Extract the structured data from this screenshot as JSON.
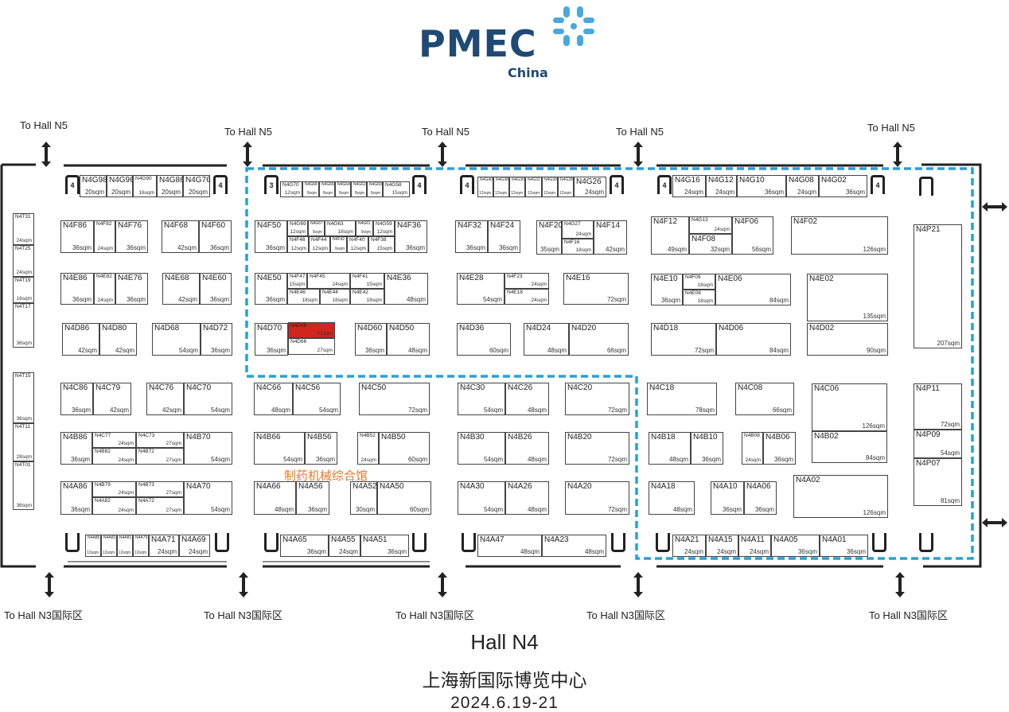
{
  "logo": {
    "brand": "PMEC",
    "sub": "China",
    "accent": "#4aa8e0",
    "brand_color": "#1f4a73"
  },
  "gates_top": [
    "To Hall N5",
    "To Hall N5",
    "To Hall N5",
    "To Hall N5",
    "To Hall N5"
  ],
  "gates_bottom": [
    "To Hall N3国际区",
    "To Hall N3国际区",
    "To Hall N3国际区",
    "To Hall N3国际区",
    "To Hall N3国际区"
  ],
  "zone": {
    "label": "制药机械综合馆",
    "label_color": "#e07a2a",
    "border_color": "#2a9fd6"
  },
  "highlight_color": "#d0261e",
  "footer": {
    "hall": "Hall N4",
    "venue": "上海新国际博览中心",
    "dates": "2024.6.19-21"
  },
  "booths": [
    {
      "id": "N4G98",
      "sqm": "20sqm"
    },
    {
      "id": "N4G96",
      "sqm": "20sqm"
    },
    {
      "id": "N4G90",
      "sqm": "16sqm"
    },
    {
      "id": "N4G86",
      "sqm": "20sqm"
    },
    {
      "id": "N4G76",
      "sqm": "20sqm"
    },
    {
      "id": "N4G70",
      "sqm": "12sqm"
    },
    {
      "id": "N4G68",
      "sqm": "9sqm"
    },
    {
      "id": "N4G66",
      "sqm": "9sqm"
    },
    {
      "id": "N4G64",
      "sqm": "9sqm"
    },
    {
      "id": "N4G62",
      "sqm": "9sqm"
    },
    {
      "id": "N4G60",
      "sqm": "9sqm"
    },
    {
      "id": "N4G58",
      "sqm": "15sqm"
    },
    {
      "id": "N4G40",
      "sqm": "12sqm"
    },
    {
      "id": "N4G38",
      "sqm": "12sqm"
    },
    {
      "id": "N4G36",
      "sqm": "12sqm"
    },
    {
      "id": "N4G32",
      "sqm": "12sqm"
    },
    {
      "id": "N4G30",
      "sqm": "12sqm"
    },
    {
      "id": "N4G28",
      "sqm": "12sqm"
    },
    {
      "id": "N4G26",
      "sqm": "24sqm"
    },
    {
      "id": "N4G16",
      "sqm": "24sqm"
    },
    {
      "id": "N4G12",
      "sqm": "24sqm"
    },
    {
      "id": "N4G10",
      "sqm": "36sqm"
    },
    {
      "id": "N4G08",
      "sqm": "24sqm"
    },
    {
      "id": "N4G02",
      "sqm": "36sqm"
    },
    {
      "id": "N4F86",
      "sqm": "36sqm"
    },
    {
      "id": "N4F82",
      "sqm": "24sqm"
    },
    {
      "id": "N4F76",
      "sqm": "36sqm"
    },
    {
      "id": "N4F68",
      "sqm": "42sqm"
    },
    {
      "id": "N4F60",
      "sqm": "36sqm"
    },
    {
      "id": "N4F50",
      "sqm": "36sqm"
    },
    {
      "id": "N4G69",
      "sqm": "12sqm"
    },
    {
      "id": "N4G67",
      "sqm": "9sqm"
    },
    {
      "id": "N4G63",
      "sqm": "18sqm"
    },
    {
      "id": "N4G61",
      "sqm": "9sqm"
    },
    {
      "id": "N4G59",
      "sqm": "12sqm"
    },
    {
      "id": "N4F46",
      "sqm": "12sqm"
    },
    {
      "id": "N4F44",
      "sqm": "12sqm"
    },
    {
      "id": "N4F42",
      "sqm": "9sqm"
    },
    {
      "id": "N4F40",
      "sqm": "12sqm"
    },
    {
      "id": "N4F38",
      "sqm": "15sqm"
    },
    {
      "id": "N4F36",
      "sqm": "36sqm"
    },
    {
      "id": "N4F32",
      "sqm": "36sqm"
    },
    {
      "id": "N4F24",
      "sqm": "36sqm"
    },
    {
      "id": "N4F20",
      "sqm": "35sqm"
    },
    {
      "id": "N4G27",
      "sqm": "24sqm"
    },
    {
      "id": "N4F16",
      "sqm": "18sqm"
    },
    {
      "id": "N4F14",
      "sqm": "42sqm"
    },
    {
      "id": "N4F12",
      "sqm": "49sqm"
    },
    {
      "id": "N4G13",
      "sqm": "24sqm"
    },
    {
      "id": "N4F08",
      "sqm": "32sqm"
    },
    {
      "id": "N4F06",
      "sqm": "56sqm"
    },
    {
      "id": "N4F02",
      "sqm": "126sqm"
    },
    {
      "id": "N4P21",
      "sqm": "207sqm"
    },
    {
      "id": "N4E86",
      "sqm": "36sqm"
    },
    {
      "id": "N4E82",
      "sqm": "24sqm"
    },
    {
      "id": "N4E76",
      "sqm": "36sqm"
    },
    {
      "id": "N4E68",
      "sqm": "42sqm"
    },
    {
      "id": "N4E60",
      "sqm": "36sqm"
    },
    {
      "id": "N4E50",
      "sqm": "36sqm"
    },
    {
      "id": "N4F47",
      "sqm": "15sqm"
    },
    {
      "id": "N4F45",
      "sqm": "24sqm"
    },
    {
      "id": "N4F41",
      "sqm": "15sqm"
    },
    {
      "id": "N4E46",
      "sqm": "18sqm"
    },
    {
      "id": "N4E44",
      "sqm": "18sqm"
    },
    {
      "id": "N4E42",
      "sqm": "18sqm"
    },
    {
      "id": "N4E36",
      "sqm": "48sqm"
    },
    {
      "id": "N4E28",
      "sqm": "54sqm"
    },
    {
      "id": "N4F23",
      "sqm": "24sqm"
    },
    {
      "id": "N4E18",
      "sqm": "24sqm"
    },
    {
      "id": "N4E16",
      "sqm": "72sqm"
    },
    {
      "id": "N4E10",
      "sqm": "36sqm"
    },
    {
      "id": "N4F09",
      "sqm": "18sqm"
    },
    {
      "id": "N4E08",
      "sqm": "18sqm"
    },
    {
      "id": "N4E06",
      "sqm": "84sqm"
    },
    {
      "id": "N4E02",
      "sqm": "135sqm"
    },
    {
      "id": "N4D86",
      "sqm": "42sqm"
    },
    {
      "id": "N4D80",
      "sqm": "42sqm"
    },
    {
      "id": "N4D68",
      "sqm": "54sqm"
    },
    {
      "id": "N4D72",
      "sqm": "36sqm"
    },
    {
      "id": "N4D70",
      "sqm": "36sqm"
    },
    {
      "id": "N4D48",
      "sqm": "27sqm",
      "highlight": true
    },
    {
      "id": "N4D66",
      "sqm": "27sqm"
    },
    {
      "id": "N4D60",
      "sqm": "36sqm"
    },
    {
      "id": "N4D50",
      "sqm": "48sqm"
    },
    {
      "id": "N4D36",
      "sqm": "60sqm"
    },
    {
      "id": "N4D24",
      "sqm": "48sqm"
    },
    {
      "id": "N4D20",
      "sqm": "66sqm"
    },
    {
      "id": "N4D18",
      "sqm": "72sqm"
    },
    {
      "id": "N4D06",
      "sqm": "84sqm"
    },
    {
      "id": "N4D02",
      "sqm": "90sqm"
    },
    {
      "id": "N4T31",
      "sqm": "24sqm"
    },
    {
      "id": "N4T25",
      "sqm": "24sqm"
    },
    {
      "id": "N4T19",
      "sqm": "16sqm"
    },
    {
      "id": "N4T17",
      "sqm": "36sqm"
    },
    {
      "id": "N4T15",
      "sqm": "36sqm"
    },
    {
      "id": "N4T11",
      "sqm": "28sqm"
    },
    {
      "id": "N4T01",
      "sqm": "36sqm"
    },
    {
      "id": "N4C86",
      "sqm": "36sqm"
    },
    {
      "id": "N4C79",
      "sqm": "42sqm"
    },
    {
      "id": "N4C76",
      "sqm": "42sqm"
    },
    {
      "id": "N4C70",
      "sqm": "54sqm"
    },
    {
      "id": "N4C66",
      "sqm": "48sqm"
    },
    {
      "id": "N4C56",
      "sqm": "54sqm"
    },
    {
      "id": "N4C50",
      "sqm": "72sqm"
    },
    {
      "id": "N4C30",
      "sqm": "54sqm"
    },
    {
      "id": "N4C26",
      "sqm": "48sqm"
    },
    {
      "id": "N4C20",
      "sqm": "72sqm"
    },
    {
      "id": "N4C18",
      "sqm": "78sqm"
    },
    {
      "id": "N4C08",
      "sqm": "66sqm"
    },
    {
      "id": "N4C06",
      "sqm": "126sqm"
    },
    {
      "id": "N4B02",
      "sqm": "84sqm"
    },
    {
      "id": "N4P11",
      "sqm": "72sqm"
    },
    {
      "id": "N4P09",
      "sqm": "54sqm"
    },
    {
      "id": "N4P07",
      "sqm": "81sqm"
    },
    {
      "id": "N4B86",
      "sqm": "36sqm"
    },
    {
      "id": "N4C77",
      "sqm": "24sqm"
    },
    {
      "id": "N4B82",
      "sqm": "24sqm"
    },
    {
      "id": "N4C73",
      "sqm": "27sqm"
    },
    {
      "id": "N4B72",
      "sqm": "27sqm"
    },
    {
      "id": "N4B70",
      "sqm": "54sqm"
    },
    {
      "id": "N4B66",
      "sqm": "54sqm"
    },
    {
      "id": "N4B56",
      "sqm": "36sqm"
    },
    {
      "id": "N4B52",
      "sqm": "24sqm"
    },
    {
      "id": "N4B50",
      "sqm": "60sqm"
    },
    {
      "id": "N4B30",
      "sqm": "54sqm"
    },
    {
      "id": "N4B26",
      "sqm": "48sqm"
    },
    {
      "id": "N4B20",
      "sqm": "72sqm"
    },
    {
      "id": "N4B18",
      "sqm": "48sqm"
    },
    {
      "id": "N4B10",
      "sqm": "36sqm"
    },
    {
      "id": "N4B08",
      "sqm": "24sqm"
    },
    {
      "id": "N4B06",
      "sqm": "36sqm"
    },
    {
      "id": "N4A86",
      "sqm": "36sqm"
    },
    {
      "id": "N4B79",
      "sqm": "24sqm"
    },
    {
      "id": "N4A82",
      "sqm": "24sqm"
    },
    {
      "id": "N4B73",
      "sqm": "27sqm"
    },
    {
      "id": "N4A72",
      "sqm": "27sqm"
    },
    {
      "id": "N4A70",
      "sqm": "54sqm"
    },
    {
      "id": "N4A66",
      "sqm": "48sqm"
    },
    {
      "id": "N4A56",
      "sqm": "36sqm"
    },
    {
      "id": "N4A52",
      "sqm": "30sqm"
    },
    {
      "id": "N4A50",
      "sqm": "60sqm"
    },
    {
      "id": "N4A30",
      "sqm": "54sqm"
    },
    {
      "id": "N4A26",
      "sqm": "48sqm"
    },
    {
      "id": "N4A20",
      "sqm": "72sqm"
    },
    {
      "id": "N4A18",
      "sqm": "48sqm"
    },
    {
      "id": "N4A10",
      "sqm": "36sqm"
    },
    {
      "id": "N4A06",
      "sqm": "36sqm"
    },
    {
      "id": "N4A02",
      "sqm": "126sqm"
    },
    {
      "id": "N4A85",
      "sqm": "12sqm"
    },
    {
      "id": "N4A83",
      "sqm": "12sqm"
    },
    {
      "id": "N4A81",
      "sqm": "12sqm"
    },
    {
      "id": "N4A79",
      "sqm": "12sqm"
    },
    {
      "id": "N4A71",
      "sqm": "24sqm"
    },
    {
      "id": "N4A69",
      "sqm": "24sqm"
    },
    {
      "id": "N4A65",
      "sqm": "36sqm"
    },
    {
      "id": "N4A55",
      "sqm": "24sqm"
    },
    {
      "id": "N4A51",
      "sqm": "36sqm"
    },
    {
      "id": "N4A47",
      "sqm": "48sqm"
    },
    {
      "id": "N4A23",
      "sqm": "48sqm"
    },
    {
      "id": "N4A21",
      "sqm": "24sqm"
    },
    {
      "id": "N4A15",
      "sqm": "24sqm"
    },
    {
      "id": "N4A11",
      "sqm": "24sqm"
    },
    {
      "id": "N4A05",
      "sqm": "36sqm"
    },
    {
      "id": "N4A01",
      "sqm": "36sqm"
    }
  ],
  "doors": [
    "4",
    "4",
    "3",
    "4",
    "4",
    "4",
    "4",
    "4"
  ]
}
